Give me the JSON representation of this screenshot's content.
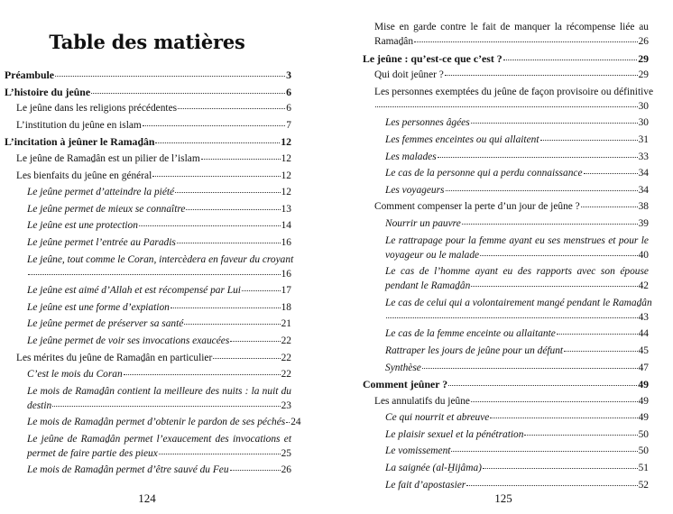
{
  "left_page": {
    "title": "Table des matières",
    "page_number": "124",
    "entries": [
      {
        "level": 1,
        "text": "Préambule",
        "page": "3"
      },
      {
        "level": 1,
        "text": "L’histoire du jeûne",
        "page": "6"
      },
      {
        "level": 2,
        "text": "Le jeûne dans les religions précédentes",
        "page": "6"
      },
      {
        "level": 2,
        "text": "L’institution du jeûne en islam",
        "page": "7"
      },
      {
        "level": 1,
        "text": "L’incitation à jeûner le Ramaḏân",
        "page": "12"
      },
      {
        "level": 2,
        "text": "Le jeûne de Ramaḏân est un pilier de l’islam",
        "page": "12"
      },
      {
        "level": 2,
        "text": "Les bienfaits du jeûne en général",
        "page": "12"
      },
      {
        "level": 3,
        "text": "Le jeûne permet d’atteindre la piété",
        "page": "12"
      },
      {
        "level": 3,
        "text": "Le jeûne permet de mieux se connaître",
        "page": "13"
      },
      {
        "level": 3,
        "text": "Le jeûne est une protection",
        "page": "14"
      },
      {
        "level": 3,
        "text": "Le jeûne permet l’entrée au Paradis",
        "page": "16"
      },
      {
        "level": 3,
        "text": "Le jeûne, tout comme le Coran, intercèdera en faveur du croyant",
        "text2": "",
        "page": "16"
      },
      {
        "level": 3,
        "text": "Le jeûne est aimé d’Allah et est récompensé par Lui",
        "page": "17"
      },
      {
        "level": 3,
        "text": "Le jeûne est une forme d’expiation",
        "page": "18"
      },
      {
        "level": 3,
        "text": "Le jeûne permet de préserver sa santé",
        "page": "21"
      },
      {
        "level": 3,
        "text": "Le jeûne permet de voir ses invocations exaucées",
        "page": "22"
      },
      {
        "level": 2,
        "text": "Les mérites du jeûne de Ramaḏân en particulier",
        "page": "22"
      },
      {
        "level": 3,
        "text": "C’est le mois du Coran",
        "page": "22"
      },
      {
        "level": 3,
        "text": "Le mois de Ramaḏân contient la meilleure des nuits : la nuit du",
        "text2": "destin",
        "page": "23"
      },
      {
        "level": 3,
        "text": "Le mois de Ramaḏân permet d’obtenir le pardon de ses péchés",
        "page": "24"
      },
      {
        "level": 3,
        "text": "Le jeûne de Ramaḏân permet l’exaucement des invocations et",
        "text2": "permet de faire partie des pieux",
        "page": "25"
      },
      {
        "level": 3,
        "text": "Le mois de Ramaḏân permet d’être sauvé du Feu",
        "page": "26"
      }
    ]
  },
  "right_page": {
    "page_number": "125",
    "entries": [
      {
        "level": 2,
        "text": "Mise en garde contre le fait de manquer la récompense liée au",
        "text2": "Ramaḏân",
        "page": "26"
      },
      {
        "level": 1,
        "text": "Le jeûne : qu’est-ce que c’est ?",
        "page": "29"
      },
      {
        "level": 2,
        "text": "Qui doit jeûner ?",
        "page": "29"
      },
      {
        "level": 2,
        "text": "Les personnes exemptées du jeûne de façon provisoire ou définitive",
        "text2": "",
        "page": "30"
      },
      {
        "level": 3,
        "text": "Les personnes âgées",
        "page": "30"
      },
      {
        "level": 3,
        "text": "Les femmes enceintes ou qui allaitent",
        "page": "31"
      },
      {
        "level": 3,
        "text": "Les malades",
        "page": "33"
      },
      {
        "level": 3,
        "text": "Le cas de la personne qui a perdu connaissance",
        "page": "34"
      },
      {
        "level": 3,
        "text": "Les voyageurs",
        "page": "34"
      },
      {
        "level": 2,
        "text": "Comment compenser la perte d’un jour de jeûne ?",
        "page": "38"
      },
      {
        "level": 3,
        "text": "Nourrir un pauvre",
        "page": "39"
      },
      {
        "level": 3,
        "text": "Le rattrapage pour la femme ayant eu ses menstrues et pour le",
        "text2": "voyageur ou le malade",
        "page": "40"
      },
      {
        "level": 3,
        "text": "Le cas de l’homme ayant eu des rapports avec son épouse",
        "text2": "pendant le Ramaḏân",
        "page": "42"
      },
      {
        "level": 3,
        "text": "Le cas de celui qui a volontairement mangé pendant le Ramaḏân",
        "text2": "",
        "page": "43"
      },
      {
        "level": 3,
        "text": "Le cas de la femme enceinte ou allaitante",
        "page": "44"
      },
      {
        "level": 3,
        "text": "Rattraper les jours de jeûne pour un défunt",
        "page": "45"
      },
      {
        "level": 3,
        "text": "Synthèse",
        "page": "47"
      },
      {
        "level": 1,
        "text": "Comment jeûner ?",
        "page": "49"
      },
      {
        "level": 2,
        "text": "Les annulatifs du jeûne",
        "page": "49"
      },
      {
        "level": 3,
        "text": "Ce qui nourrit et abreuve",
        "page": "49"
      },
      {
        "level": 3,
        "text": "Le plaisir sexuel et la pénétration",
        "page": "50"
      },
      {
        "level": 3,
        "text": "Le vomissement",
        "page": "50"
      },
      {
        "level": 3,
        "text": "La saignée (al-H̱ijâma)",
        "page": "51"
      },
      {
        "level": 3,
        "text": "Le fait d’apostasier",
        "page": "52"
      }
    ]
  }
}
